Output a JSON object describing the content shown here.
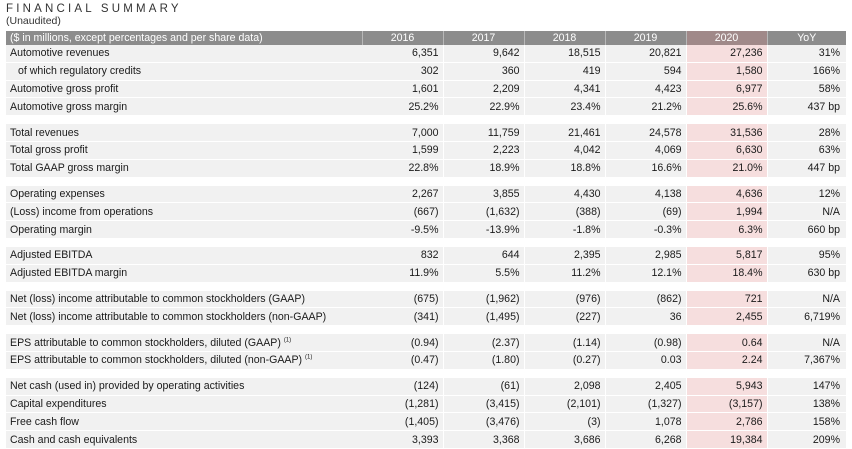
{
  "title": "FINANCIAL SUMMARY",
  "subtitle": "(Unaudited)",
  "header": {
    "label": "($ in millions, except percentages and per share data)",
    "years": [
      "2016",
      "2017",
      "2018",
      "2019",
      "2020"
    ],
    "yoy": "YoY"
  },
  "groups": [
    {
      "rows": [
        {
          "label": "Automotive revenues",
          "values": [
            "6,351",
            "9,642",
            "18,515",
            "20,821",
            "27,236"
          ],
          "yoy": "31%"
        },
        {
          "label": "of which regulatory credits",
          "values": [
            "302",
            "360",
            "419",
            "594",
            "1,580"
          ],
          "yoy": "166%"
        },
        {
          "label": "Automotive gross profit",
          "values": [
            "1,601",
            "2,209",
            "4,341",
            "4,423",
            "6,977"
          ],
          "yoy": "58%"
        },
        {
          "label": "Automotive gross margin",
          "values": [
            "25.2%",
            "22.9%",
            "23.4%",
            "21.2%",
            "25.6%"
          ],
          "yoy": "437 bp"
        }
      ]
    },
    {
      "rows": [
        {
          "label": "Total revenues",
          "values": [
            "7,000",
            "11,759",
            "21,461",
            "24,578",
            "31,536"
          ],
          "yoy": "28%"
        },
        {
          "label": "Total gross profit",
          "values": [
            "1,599",
            "2,223",
            "4,042",
            "4,069",
            "6,630"
          ],
          "yoy": "63%"
        },
        {
          "label": "Total GAAP gross margin",
          "values": [
            "22.8%",
            "18.9%",
            "18.8%",
            "16.6%",
            "21.0%"
          ],
          "yoy": "447 bp"
        }
      ]
    },
    {
      "rows": [
        {
          "label": "Operating expenses",
          "values": [
            "2,267",
            "3,855",
            "4,430",
            "4,138",
            "4,636"
          ],
          "yoy": "12%"
        },
        {
          "label": "(Loss) income from operations",
          "values": [
            "(667)",
            "(1,632)",
            "(388)",
            "(69)",
            "1,994"
          ],
          "yoy": "N/A"
        },
        {
          "label": "Operating margin",
          "values": [
            "-9.5%",
            "-13.9%",
            "-1.8%",
            "-0.3%",
            "6.3%"
          ],
          "yoy": "660 bp"
        }
      ]
    },
    {
      "rows": [
        {
          "label": "Adjusted EBITDA",
          "values": [
            "832",
            "644",
            "2,395",
            "2,985",
            "5,817"
          ],
          "yoy": "95%"
        },
        {
          "label": "Adjusted EBITDA margin",
          "values": [
            "11.9%",
            "5.5%",
            "11.2%",
            "12.1%",
            "18.4%"
          ],
          "yoy": "630 bp"
        }
      ]
    },
    {
      "rows": [
        {
          "label": "Net (loss) income attributable to common stockholders (GAAP)",
          "values": [
            "(675)",
            "(1,962)",
            "(976)",
            "(862)",
            "721"
          ],
          "yoy": "N/A"
        },
        {
          "label": "Net (loss) income attributable to common stockholders (non-GAAP)",
          "values": [
            "(341)",
            "(1,495)",
            "(227)",
            "36",
            "2,455"
          ],
          "yoy": "6,719%"
        }
      ]
    },
    {
      "rows": [
        {
          "label": "EPS attributable to common stockholders, diluted (GAAP)",
          "footnote": "(1)",
          "values": [
            "(0.94)",
            "(2.37)",
            "(1.14)",
            "(0.98)",
            "0.64"
          ],
          "yoy": "N/A"
        },
        {
          "label": "EPS attributable to common stockholders, diluted (non-GAAP)",
          "footnote": "(1)",
          "values": [
            "(0.47)",
            "(1.80)",
            "(0.27)",
            "0.03",
            "2.24"
          ],
          "yoy": "7,367%"
        }
      ]
    },
    {
      "rows": [
        {
          "label": "Net cash (used in) provided by operating activities",
          "values": [
            "(124)",
            "(61)",
            "2,098",
            "2,405",
            "5,943"
          ],
          "yoy": "147%"
        },
        {
          "label": "Capital expenditures",
          "values": [
            "(1,281)",
            "(3,415)",
            "(2,101)",
            "(1,327)",
            "(3,157)"
          ],
          "yoy": "138%"
        },
        {
          "label": "Free cash flow",
          "values": [
            "(1,405)",
            "(3,476)",
            "(3)",
            "1,078",
            "2,786"
          ],
          "yoy": "158%"
        },
        {
          "label": "Cash and cash equivalents",
          "values": [
            "3,393",
            "3,368",
            "3,686",
            "6,268",
            "19,384"
          ],
          "yoy": "209%"
        }
      ]
    }
  ],
  "colors": {
    "header_bg": "#8c8c8c",
    "header_2020_bg": "#a08989",
    "row_bg": "#f1f1f1",
    "highlight_bg": "#f6dede"
  }
}
